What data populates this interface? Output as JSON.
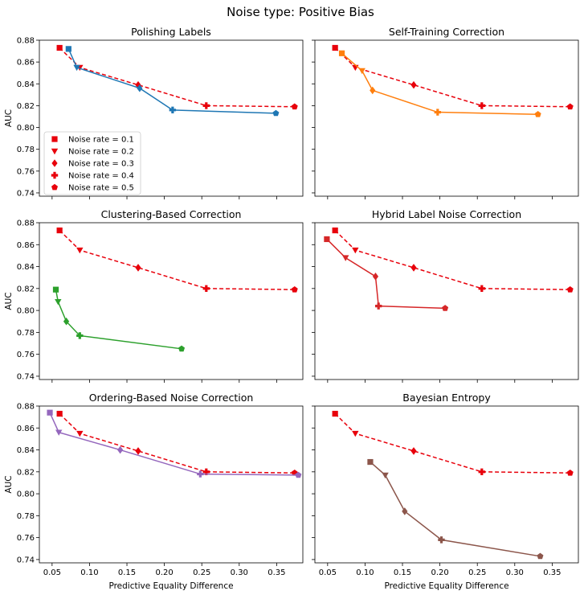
{
  "suptitle": "Noise type: Positive Bias",
  "legend_labels": [
    "Noise rate = 0.1",
    "Noise rate = 0.2",
    "Noise rate = 0.3",
    "Noise rate = 0.4",
    "Noise rate = 0.5"
  ],
  "markers": [
    "square",
    "triangle-down",
    "diamond",
    "plus",
    "pentagon"
  ],
  "reference_color": "#e8000b",
  "chart_data": {
    "type": "line",
    "xlabel": "Predictive Equality Difference",
    "ylabel": "AUC",
    "xlim": [
      0.033,
      0.385
    ],
    "ylim": [
      0.737,
      0.88
    ],
    "xticks": [
      0.05,
      0.1,
      0.15,
      0.2,
      0.25,
      0.3,
      0.35
    ],
    "xtick_labels": [
      "0.05",
      "0.10",
      "0.15",
      "0.20",
      "0.25",
      "0.30",
      "0.35"
    ],
    "yticks": [
      0.74,
      0.76,
      0.78,
      0.8,
      0.82,
      0.84,
      0.86,
      0.88
    ],
    "ytick_labels": [
      "0.74",
      "0.76",
      "0.78",
      "0.80",
      "0.82",
      "0.84",
      "0.86",
      "0.88"
    ],
    "reference_series": {
      "x": [
        0.06,
        0.087,
        0.165,
        0.256,
        0.374
      ],
      "y": [
        0.873,
        0.855,
        0.839,
        0.82,
        0.819
      ]
    },
    "panels": [
      {
        "title": "Polishing Labels",
        "color": "#1f77b4",
        "x": [
          0.072,
          0.083,
          0.167,
          0.211,
          0.349
        ],
        "y": [
          0.872,
          0.855,
          0.836,
          0.816,
          0.813
        ]
      },
      {
        "title": "Self-Training Correction",
        "color": "#ff7f0e",
        "x": [
          0.069,
          0.096,
          0.11,
          0.197,
          0.331
        ],
        "y": [
          0.868,
          0.852,
          0.834,
          0.814,
          0.812
        ]
      },
      {
        "title": "Clustering-Based Correction",
        "color": "#2ca02c",
        "x": [
          0.055,
          0.058,
          0.069,
          0.087,
          0.223
        ],
        "y": [
          0.819,
          0.808,
          0.79,
          0.777,
          0.765
        ]
      },
      {
        "title": "Hybrid Label Noise Correction",
        "color": "#d62728",
        "x": [
          0.049,
          0.074,
          0.114,
          0.118,
          0.207
        ],
        "y": [
          0.865,
          0.848,
          0.831,
          0.804,
          0.802
        ]
      },
      {
        "title": "Ordering-Based Noise Correction",
        "color": "#9467bd",
        "x": [
          0.047,
          0.059,
          0.141,
          0.248,
          0.379
        ],
        "y": [
          0.874,
          0.856,
          0.84,
          0.818,
          0.817
        ]
      },
      {
        "title": "Bayesian Entropy",
        "color": "#8c564b",
        "x": [
          0.107,
          0.127,
          0.153,
          0.202,
          0.334
        ],
        "y": [
          0.829,
          0.817,
          0.784,
          0.758,
          0.743
        ]
      }
    ],
    "legend_position": "lower-left, first panel",
    "grid": false
  }
}
